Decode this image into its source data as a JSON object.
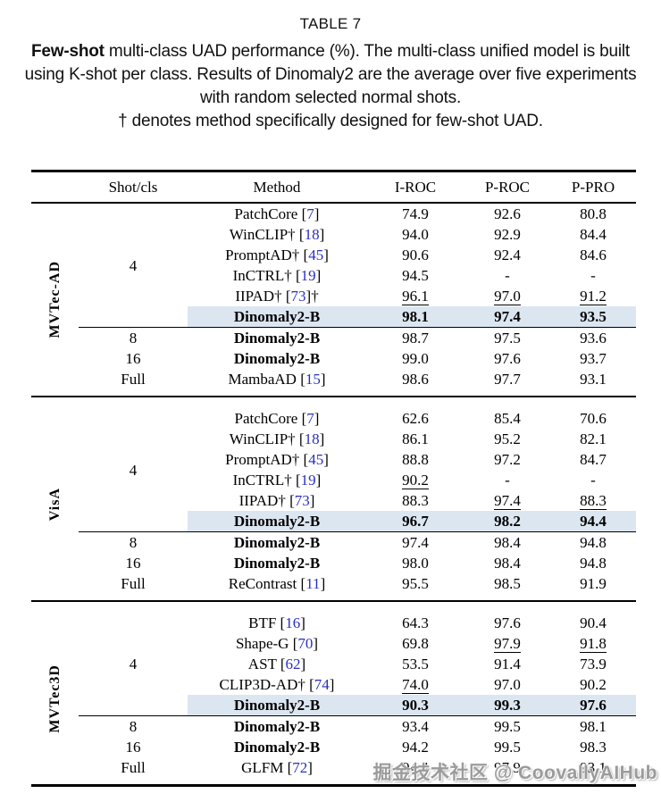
{
  "page": {
    "title": "TABLE 7",
    "caption_bold": "Few-shot",
    "caption_body": " multi-class UAD performance (%). The multi-class unified model is built using K-shot per class. Results of Dinomaly2 are the average over five experiments with random selected normal shots.",
    "caption_note": "† denotes method specifically designed for few-shot UAD.",
    "watermark": "掘金技术社区 @ CoovallyAIHub"
  },
  "colors": {
    "citation": "#2a2fc0",
    "row_highlight": "#dce6f1",
    "rule_black": "#000000",
    "watermark": "#9b9b9b",
    "text": "#000000"
  },
  "table": {
    "headers": [
      "Shot/cls",
      "Method",
      "I-ROC",
      "P-ROC",
      "P-PRO"
    ],
    "sections": [
      {
        "dataset": "MVTec-AD",
        "groups": [
          {
            "shot": "4",
            "rows": [
              {
                "method": "PatchCore",
                "cite": "7",
                "values": [
                  "74.9",
                  "92.6",
                  "80.8"
                ]
              },
              {
                "method": "WinCLIP†",
                "cite": "18",
                "values": [
                  "94.0",
                  "92.9",
                  "84.4"
                ]
              },
              {
                "method": "PromptAD†",
                "cite": "45",
                "values": [
                  "90.6",
                  "92.4",
                  "84.6"
                ]
              },
              {
                "method": "InCTRL†",
                "cite": "19",
                "values": [
                  "94.5",
                  "-",
                  "-"
                ]
              },
              {
                "method": "IIPAD†",
                "cite": "73",
                "post": "†",
                "values": [
                  "96.1",
                  "97.0",
                  "91.2"
                ],
                "underline": [
                  true,
                  true,
                  true
                ]
              },
              {
                "method": "Dinomaly2-B",
                "bold": true,
                "highlight": true,
                "values_bold": true,
                "values": [
                  "98.1",
                  "97.4",
                  "93.5"
                ]
              }
            ]
          },
          {
            "shot": "8",
            "cline": true,
            "rows": [
              {
                "method": "Dinomaly2-B",
                "bold": true,
                "values": [
                  "98.7",
                  "97.5",
                  "93.6"
                ]
              }
            ]
          },
          {
            "shot": "16",
            "rows": [
              {
                "method": "Dinomaly2-B",
                "bold": true,
                "values": [
                  "99.0",
                  "97.6",
                  "93.7"
                ]
              }
            ]
          },
          {
            "shot": "Full",
            "rows": [
              {
                "method": "MambaAD",
                "cite": "15",
                "values": [
                  "98.6",
                  "97.7",
                  "93.1"
                ]
              }
            ]
          }
        ]
      },
      {
        "dataset": "VisA",
        "groups": [
          {
            "shot": "4",
            "rows": [
              {
                "method": "PatchCore",
                "cite": "7",
                "values": [
                  "62.6",
                  "85.4",
                  "70.6"
                ]
              },
              {
                "method": "WinCLIP†",
                "cite": "18",
                "values": [
                  "86.1",
                  "95.2",
                  "82.1"
                ]
              },
              {
                "method": "PromptAD†",
                "cite": "45",
                "values": [
                  "88.8",
                  "97.2",
                  "84.7"
                ]
              },
              {
                "method": "InCTRL†",
                "cite": "19",
                "values": [
                  "90.2",
                  "-",
                  "-"
                ],
                "underline": [
                  true,
                  false,
                  false
                ]
              },
              {
                "method": "IIPAD†",
                "cite": "73",
                "values": [
                  "88.3",
                  "97.4",
                  "88.3"
                ],
                "underline": [
                  false,
                  true,
                  true
                ]
              },
              {
                "method": "Dinomaly2-B",
                "bold": true,
                "highlight": true,
                "values_bold": true,
                "values": [
                  "96.7",
                  "98.2",
                  "94.4"
                ]
              }
            ]
          },
          {
            "shot": "8",
            "cline": true,
            "rows": [
              {
                "method": "Dinomaly2-B",
                "bold": true,
                "values": [
                  "97.4",
                  "98.4",
                  "94.8"
                ]
              }
            ]
          },
          {
            "shot": "16",
            "rows": [
              {
                "method": "Dinomaly2-B",
                "bold": true,
                "values": [
                  "98.0",
                  "98.4",
                  "94.8"
                ]
              }
            ]
          },
          {
            "shot": "Full",
            "rows": [
              {
                "method": "ReContrast",
                "cite": "11",
                "values": [
                  "95.5",
                  "98.5",
                  "91.9"
                ]
              }
            ]
          }
        ]
      },
      {
        "dataset": "MVTec3D",
        "groups": [
          {
            "shot": "4",
            "rows": [
              {
                "method": "BTF",
                "cite": "16",
                "values": [
                  "64.3",
                  "97.6",
                  "90.4"
                ]
              },
              {
                "method": "Shape-G",
                "cite": "70",
                "values": [
                  "69.8",
                  "97.9",
                  "91.8"
                ],
                "underline": [
                  false,
                  true,
                  true
                ]
              },
              {
                "method": "AST",
                "cite": "62",
                "values": [
                  "53.5",
                  "91.4",
                  "73.9"
                ]
              },
              {
                "method": "CLIP3D-AD†",
                "cite": "74",
                "values": [
                  "74.0",
                  "97.0",
                  "90.2"
                ],
                "underline": [
                  true,
                  false,
                  false
                ]
              },
              {
                "method": "Dinomaly2-B",
                "bold": true,
                "highlight": true,
                "values_bold": true,
                "values": [
                  "90.3",
                  "99.3",
                  "97.6"
                ]
              }
            ]
          },
          {
            "shot": "8",
            "cline": true,
            "rows": [
              {
                "method": "Dinomaly2-B",
                "bold": true,
                "values": [
                  "93.4",
                  "99.5",
                  "98.1"
                ]
              }
            ]
          },
          {
            "shot": "16",
            "rows": [
              {
                "method": "Dinomaly2-B",
                "bold": true,
                "values": [
                  "94.2",
                  "99.5",
                  "98.3"
                ]
              }
            ]
          },
          {
            "shot": "Full",
            "rows": [
              {
                "method": "GLFM",
                "cite": "72",
                "values": [
                  "94.4",
                  "97.9",
                  "93.1"
                ]
              }
            ]
          }
        ]
      }
    ]
  }
}
